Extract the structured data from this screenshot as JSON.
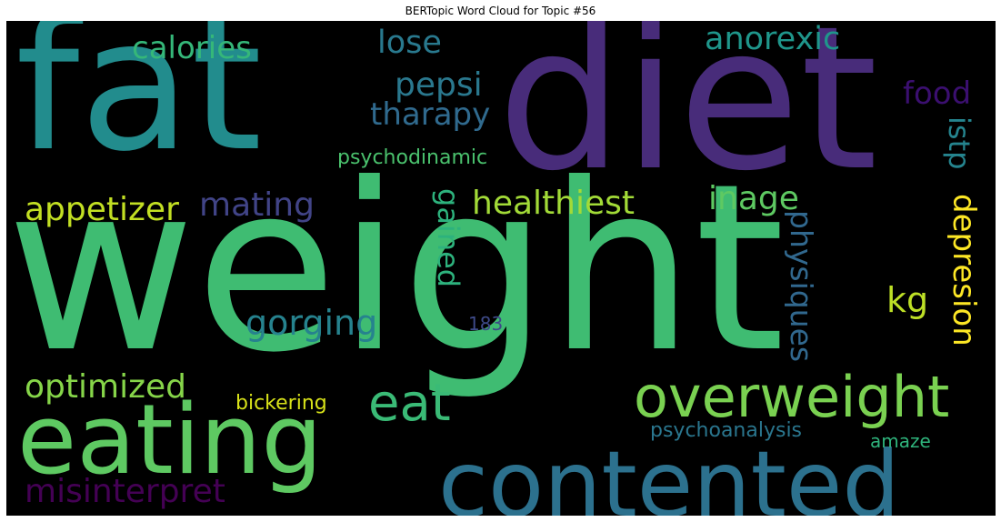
{
  "chart_data": {
    "type": "wordcloud",
    "title": "BERTopic Word Cloud for Topic #56",
    "background": "#000000",
    "words": [
      {
        "text": "weight",
        "color": "#3fbc72"
      },
      {
        "text": "diet",
        "color": "#482c7a"
      },
      {
        "text": "fat",
        "color": "#228c8d"
      },
      {
        "text": "contented",
        "color": "#2c718e"
      },
      {
        "text": "eating",
        "color": "#5ec962"
      },
      {
        "text": "overweight",
        "color": "#7ad151"
      },
      {
        "text": "eat",
        "color": "#3aba76"
      },
      {
        "text": "healthiest",
        "color": "#a2da37"
      },
      {
        "text": "calories",
        "color": "#35b779"
      },
      {
        "text": "anorexic",
        "color": "#1f968b"
      },
      {
        "text": "lose",
        "color": "#29798e"
      },
      {
        "text": "pepsi",
        "color": "#2a788e"
      },
      {
        "text": "tharapy",
        "color": "#306a8e"
      },
      {
        "text": "food",
        "color": "#3b0f70"
      },
      {
        "text": "istp",
        "color": "#25848e"
      },
      {
        "text": "psychodinamic",
        "color": "#4ac16d"
      },
      {
        "text": "appetizer",
        "color": "#c2df23"
      },
      {
        "text": "mating",
        "color": "#414487"
      },
      {
        "text": "inage",
        "color": "#5ec962"
      },
      {
        "text": "depresion",
        "color": "#fde725"
      },
      {
        "text": "physiques",
        "color": "#31688e"
      },
      {
        "text": "gained",
        "color": "#2db27d"
      },
      {
        "text": "kg",
        "color": "#bddf26"
      },
      {
        "text": "gorging",
        "color": "#26828e"
      },
      {
        "text": "183",
        "color": "#3e4a89"
      },
      {
        "text": "optimized",
        "color": "#86d549"
      },
      {
        "text": "bickering",
        "color": "#d8e219"
      },
      {
        "text": "psychoanalysis",
        "color": "#2a768e"
      },
      {
        "text": "amaze",
        "color": "#2fb47c"
      },
      {
        "text": "misinterpret",
        "color": "#440154"
      }
    ]
  }
}
